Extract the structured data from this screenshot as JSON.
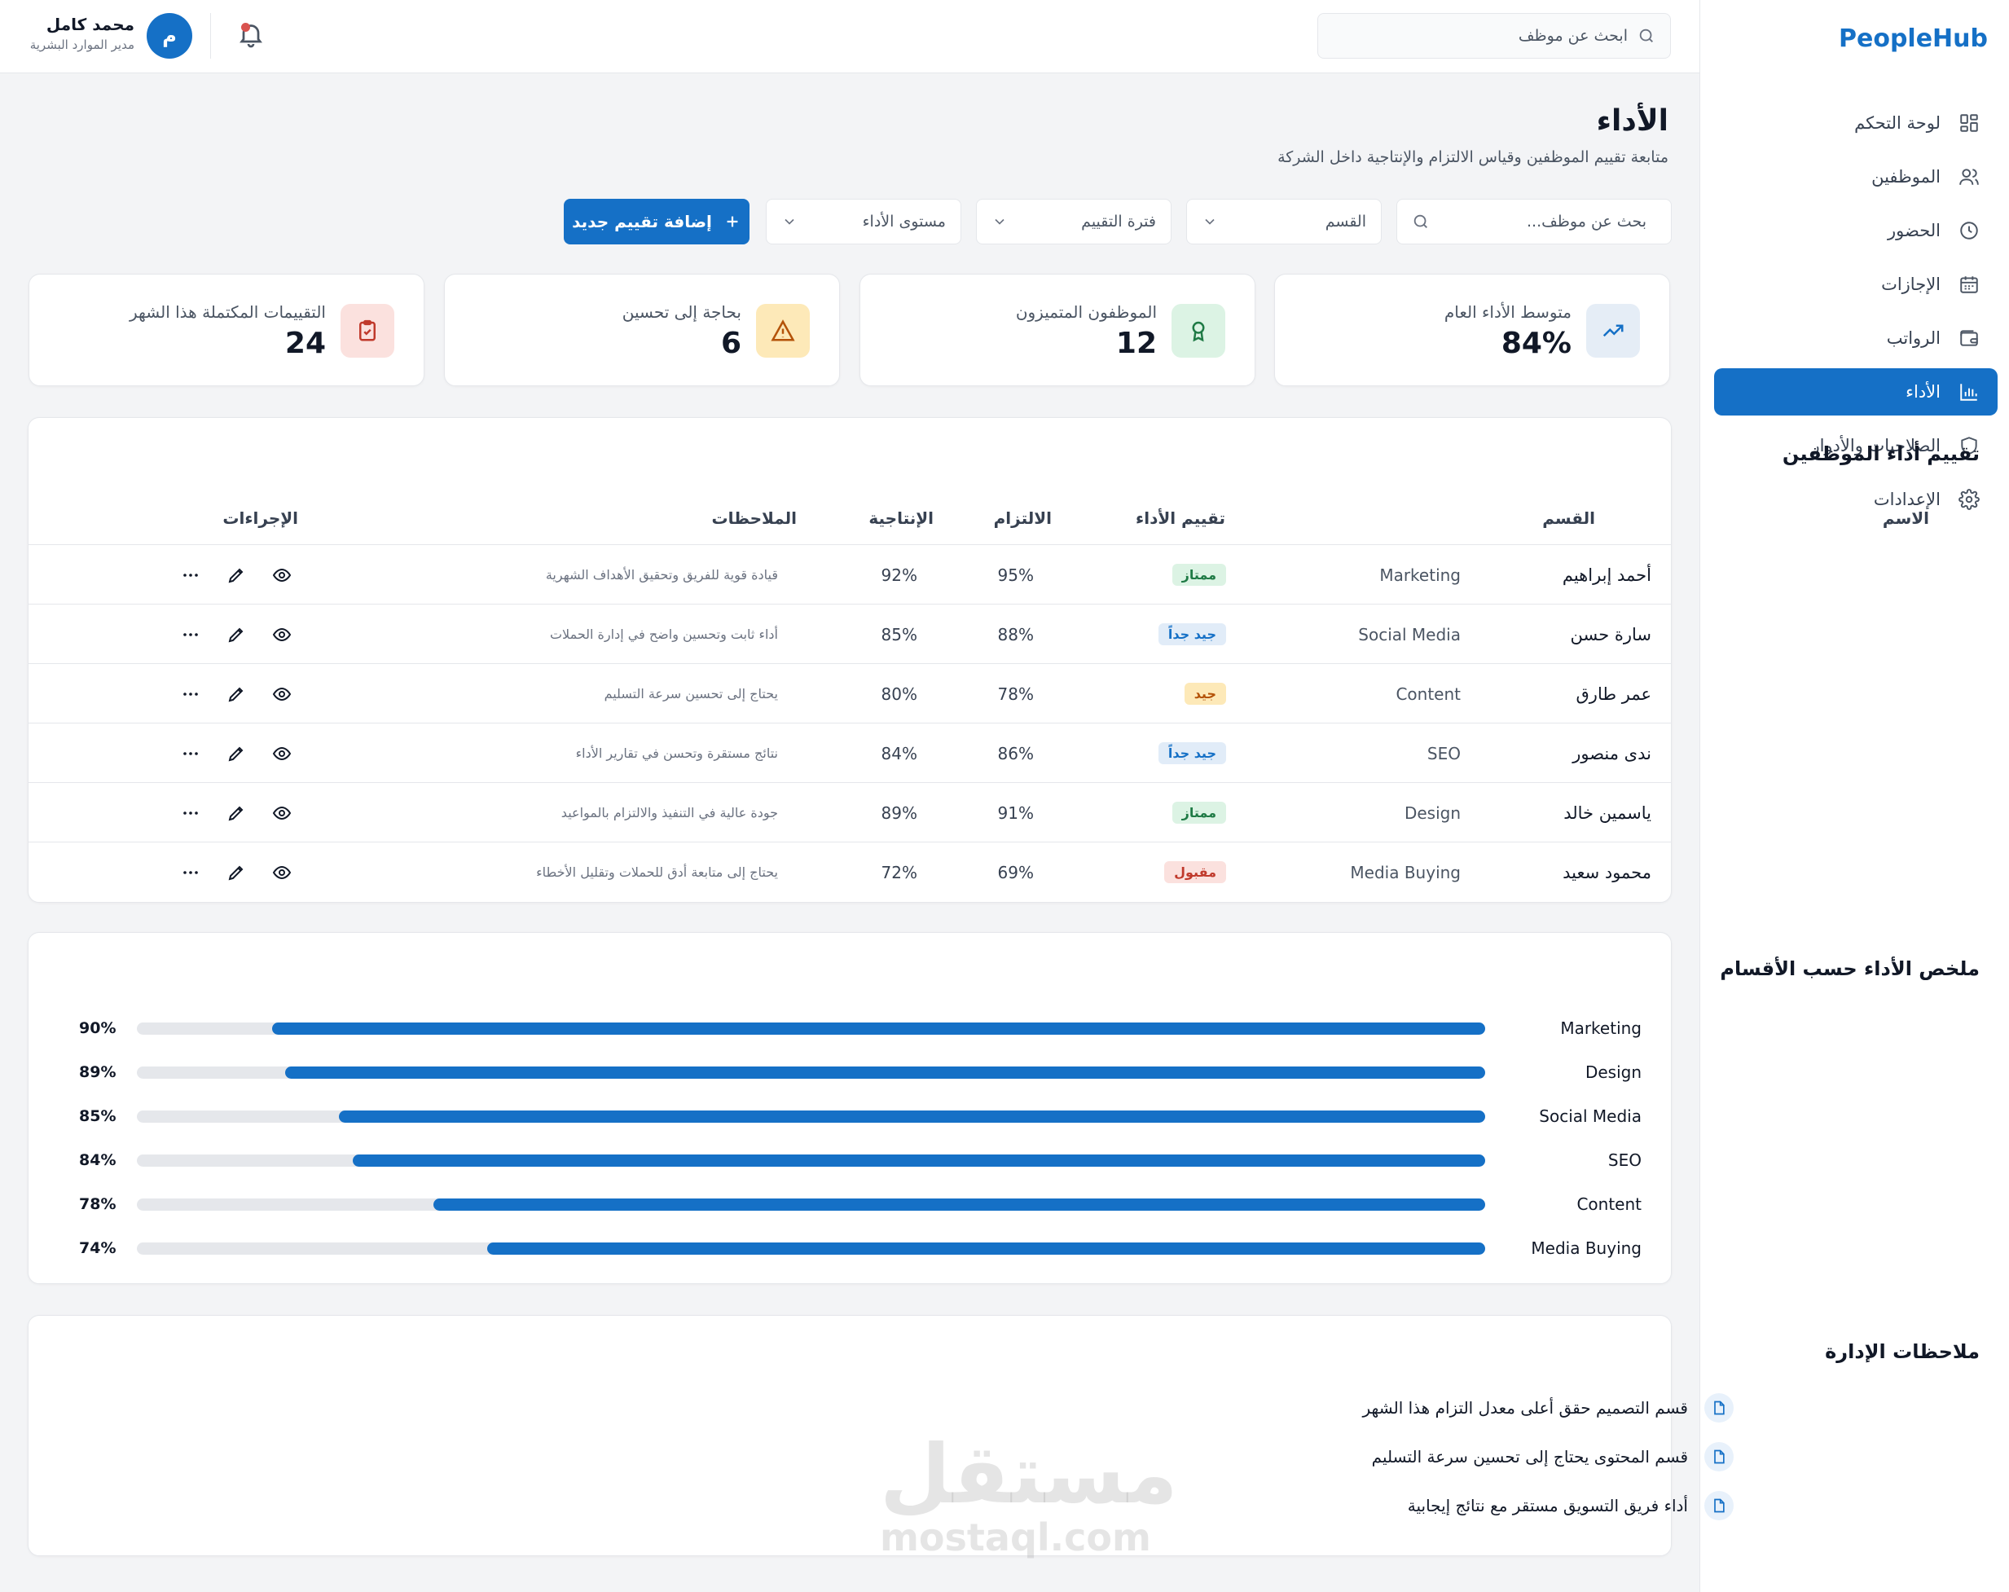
{
  "brand": "PeopleHub",
  "sidebar": {
    "items": [
      {
        "label": "لوحة التحكم",
        "icon": "grid-icon",
        "active": false
      },
      {
        "label": "الموظفين",
        "icon": "users-icon",
        "active": false
      },
      {
        "label": "الحضور",
        "icon": "clock-icon",
        "active": false
      },
      {
        "label": "الإجازات",
        "icon": "calendar-icon",
        "active": false
      },
      {
        "label": "الرواتب",
        "icon": "wallet-icon",
        "active": false
      },
      {
        "label": "الأداء",
        "icon": "bar-chart-icon",
        "active": true
      },
      {
        "label": "الصلاحيات والأدوار",
        "icon": "shield-icon",
        "active": false
      },
      {
        "label": "الإعدادات",
        "icon": "gear-icon",
        "active": false
      }
    ]
  },
  "topbar": {
    "search_placeholder": "ابحث عن موظف",
    "user_initial": "م",
    "user_name": "محمد كامل",
    "user_role": "مدير الموارد البشرية"
  },
  "header": {
    "title": "الأداء",
    "subtitle": "متابعة تقييم الموظفين وقياس الالتزام والإنتاجية داخل الشركة"
  },
  "filters": {
    "search_placeholder": "بحث عن موظف...",
    "department": "القسم",
    "period": "فترة التقييم",
    "level": "مستوى الأداء",
    "add_button": "إضافة تقييم جديد"
  },
  "stats": [
    {
      "label": "متوسط الأداء العام",
      "value": "84%",
      "icon": "trending-up-icon",
      "color": "#1570c6",
      "bg": "#e5edf6"
    },
    {
      "label": "الموظفون المتميزون",
      "value": "12",
      "icon": "award-icon",
      "color": "#1f7a45",
      "bg": "#dcf3e4"
    },
    {
      "label": "بحاجة إلى تحسين",
      "value": "6",
      "icon": "warning-icon",
      "color": "#b45309",
      "bg": "#fde9b8"
    },
    {
      "label": "التقييمات المكتملة هذا الشهر",
      "value": "24",
      "icon": "clipboard-check-icon",
      "color": "#c0392b",
      "bg": "#fbe1de"
    }
  ],
  "table": {
    "title": "تقييم أداء الموظفين",
    "columns": {
      "name": "الاسم",
      "department": "القسم",
      "rating": "تقييم الأداء",
      "commitment": "الالتزام",
      "productivity": "الإنتاجية",
      "notes": "الملاحظات",
      "actions": "الإجراءات"
    },
    "rows": [
      {
        "name": "أحمد إبراهيم",
        "department": "Marketing",
        "rating": "ممتاز",
        "rating_color": "#1f7a45",
        "rating_bg": "#dcf3e4",
        "commitment": "95%",
        "productivity": "92%",
        "note": "قيادة قوية للفريق وتحقيق الأهداف الشهرية"
      },
      {
        "name": "سارة حسن",
        "department": "Social Media",
        "rating": "جيد جداً",
        "rating_color": "#1570c6",
        "rating_bg": "#e1ecf8",
        "commitment": "88%",
        "productivity": "85%",
        "note": "أداء ثابت وتحسين واضح في إدارة الحملات"
      },
      {
        "name": "عمر طارق",
        "department": "Content",
        "rating": "جيد",
        "rating_color": "#b45309",
        "rating_bg": "#fde9b8",
        "commitment": "78%",
        "productivity": "80%",
        "note": "يحتاج إلى تحسين سرعة التسليم"
      },
      {
        "name": "ندى منصور",
        "department": "SEO",
        "rating": "جيد جداً",
        "rating_color": "#1570c6",
        "rating_bg": "#e1ecf8",
        "commitment": "86%",
        "productivity": "84%",
        "note": "نتائج مستقرة وتحسن في تقارير الأداء"
      },
      {
        "name": "ياسمين خالد",
        "department": "Design",
        "rating": "ممتاز",
        "rating_color": "#1f7a45",
        "rating_bg": "#dcf3e4",
        "commitment": "91%",
        "productivity": "89%",
        "note": "جودة عالية في التنفيذ والالتزام بالمواعيد"
      },
      {
        "name": "محمود سعيد",
        "department": "Media Buying",
        "rating": "مقبول",
        "rating_color": "#c0392b",
        "rating_bg": "#fbe1de",
        "commitment": "69%",
        "productivity": "72%",
        "note": "يحتاج إلى متابعة أدق للحملات وتقليل الأخطاء"
      }
    ]
  },
  "summary": {
    "title": "ملخص الأداء حسب الأقسام",
    "bars": [
      {
        "label": "Marketing",
        "value": 90,
        "display": "90%"
      },
      {
        "label": "Design",
        "value": 89,
        "display": "89%"
      },
      {
        "label": "Social Media",
        "value": 85,
        "display": "85%"
      },
      {
        "label": "SEO",
        "value": 84,
        "display": "84%"
      },
      {
        "label": "Content",
        "value": 78,
        "display": "78%"
      },
      {
        "label": "Media Buying",
        "value": 74,
        "display": "74%"
      }
    ]
  },
  "management_notes": {
    "title": "ملاحظات الإدارة",
    "items": [
      "قسم التصميم حقق أعلى معدل التزام هذا الشهر",
      "قسم المحتوى يحتاج إلى تحسين سرعة التسليم",
      "أداء فريق التسويق مستقر مع نتائج إيجابية"
    ]
  },
  "watermark": {
    "arabic": "مستقل",
    "latin": "mostaql.com"
  }
}
